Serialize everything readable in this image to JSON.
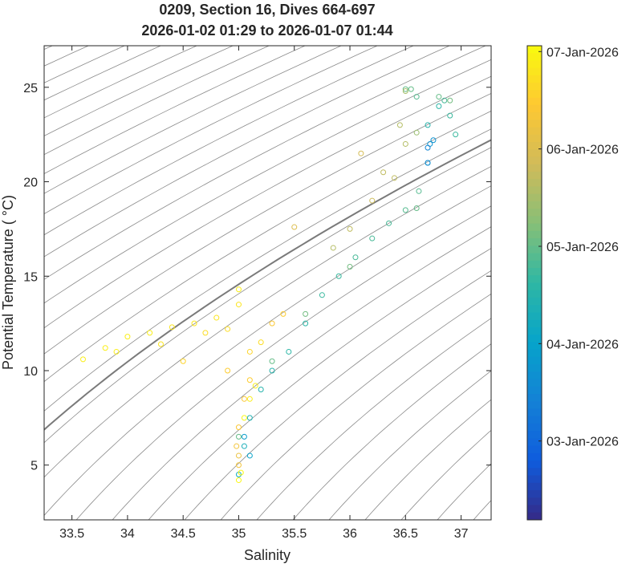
{
  "chart_data": {
    "type": "scatter",
    "title": "0209, Section 16, Dives 664-697",
    "subtitle": "2026-01-02 01:29 to 2026-01-07 01:44",
    "x_label": "Salinity",
    "y_label": "Potential Temperature ( °C)",
    "xlim": [
      33.25,
      37.27
    ],
    "ylim": [
      2.1,
      27.2
    ],
    "xticks": [
      33.5,
      34,
      34.5,
      35,
      35.5,
      36,
      36.5,
      37
    ],
    "yticks": [
      5,
      10,
      15,
      20,
      25
    ],
    "colormap": "parula",
    "clim": [
      2.19,
      7.06
    ],
    "cticks": [
      {
        "value": 3,
        "label": "03-Jan-2026"
      },
      {
        "value": 4,
        "label": "04-Jan-2026"
      },
      {
        "value": 5,
        "label": "05-Jan-2026"
      },
      {
        "value": 6,
        "label": "06-Jan-2026"
      },
      {
        "value": 7,
        "label": "07-Jan-2026"
      }
    ],
    "x": [
      35.0,
      35.05,
      35.1,
      35.2,
      35.3,
      35.45,
      35.6,
      35.75,
      35.9,
      36.05,
      36.2,
      36.35,
      36.5,
      36.62,
      36.7,
      36.72,
      36.7,
      36.8,
      36.9,
      36.95,
      36.85,
      36.6,
      36.5,
      33.6,
      33.8,
      34.0,
      34.2,
      34.4,
      34.6,
      34.8,
      35.0,
      35.0,
      34.9,
      34.5,
      34.9,
      35.1,
      35.3,
      35.4,
      35.2,
      34.3,
      33.9,
      34.7,
      35.0,
      34.98,
      35.0,
      35.05,
      35.1,
      35.0,
      35.0,
      35.02,
      35.05,
      35.1,
      35.15,
      36.3,
      36.1,
      36.45,
      36.5,
      36.2,
      35.85,
      36.0,
      35.5,
      36.5,
      36.6,
      36.4,
      35.0,
      35.3,
      35.6,
      36.0,
      36.6,
      36.55,
      36.9,
      36.8,
      36.7,
      36.7,
      36.75,
      35.1,
      35.05
    ],
    "y": [
      4.5,
      6,
      7.5,
      9,
      10,
      11,
      12.5,
      14,
      15,
      16,
      17,
      17.8,
      18.5,
      19.5,
      21,
      22,
      23,
      24,
      23.5,
      22.5,
      24.3,
      24.5,
      24.9,
      10.6,
      11.2,
      11.8,
      12,
      12.3,
      12.5,
      12.8,
      13.5,
      14.3,
      12.2,
      10.5,
      10,
      11,
      12.5,
      13,
      11.5,
      11.4,
      11,
      12,
      5,
      6,
      7,
      8.5,
      9.5,
      5.5,
      4.2,
      4.6,
      7.5,
      8.5,
      9.2,
      20.5,
      21.5,
      23,
      24.8,
      19,
      16.5,
      17.5,
      17.6,
      22,
      22.6,
      20.2,
      6.5,
      10.5,
      13,
      15.5,
      18.6,
      24.9,
      24.3,
      24.5,
      21.8,
      21,
      22.2,
      5.5,
      6.5
    ],
    "c": [
      4.2,
      4.3,
      4.4,
      4.5,
      4.5,
      4.6,
      4.6,
      4.7,
      4.7,
      4.8,
      4.8,
      4.8,
      4.9,
      4.9,
      3.8,
      3.7,
      4.5,
      4.6,
      4.7,
      4.7,
      4.8,
      4.9,
      5.0,
      6.9,
      6.9,
      6.9,
      6.9,
      6.8,
      6.8,
      6.8,
      6.8,
      6.9,
      6.7,
      6.6,
      6.5,
      6.6,
      6.4,
      6.5,
      6.7,
      6.8,
      6.9,
      6.7,
      6.3,
      6.3,
      6.4,
      6.4,
      6.5,
      6.2,
      7.0,
      7.0,
      7.0,
      6.9,
      6.9,
      5.7,
      5.9,
      5.6,
      5.5,
      5.8,
      5.6,
      5.7,
      6.0,
      5.6,
      5.4,
      5.7,
      5.0,
      5.0,
      5.1,
      5.1,
      5.0,
      5.0,
      5.1,
      5.0,
      3.5,
      3.6,
      3.7,
      4.0,
      3.9
    ]
  }
}
